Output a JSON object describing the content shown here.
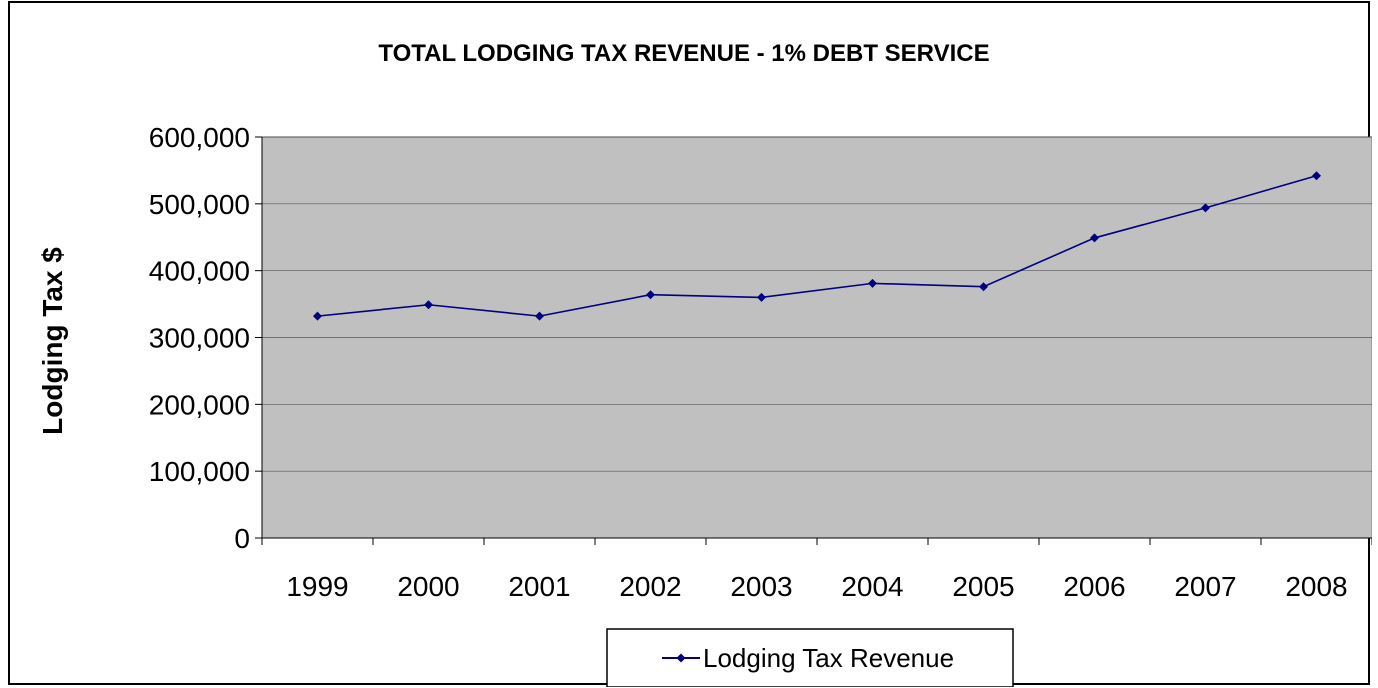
{
  "chart_data": {
    "type": "line",
    "title": "TOTAL LODGING TAX REVENUE - 1% DEBT SERVICE",
    "xlabel": "",
    "ylabel": "Lodging Tax $",
    "categories": [
      "1999",
      "2000",
      "2001",
      "2002",
      "2003",
      "2004",
      "2005",
      "2006",
      "2007",
      "2008"
    ],
    "series": [
      {
        "name": "Lodging Tax Revenue",
        "color": "#000080",
        "marker": "diamond",
        "values": [
          332000,
          349000,
          332000,
          364000,
          360000,
          381000,
          376000,
          449000,
          494000,
          542000
        ]
      }
    ],
    "ylim": [
      0,
      600000
    ],
    "yticks": [
      0,
      100000,
      200000,
      300000,
      400000,
      500000,
      600000
    ],
    "ytick_labels": [
      "0",
      "100,000",
      "200,000",
      "300,000",
      "400,000",
      "500,000",
      "600,000"
    ],
    "grid": true,
    "plot_background": "#C0C0C0",
    "legend_position": "bottom"
  }
}
